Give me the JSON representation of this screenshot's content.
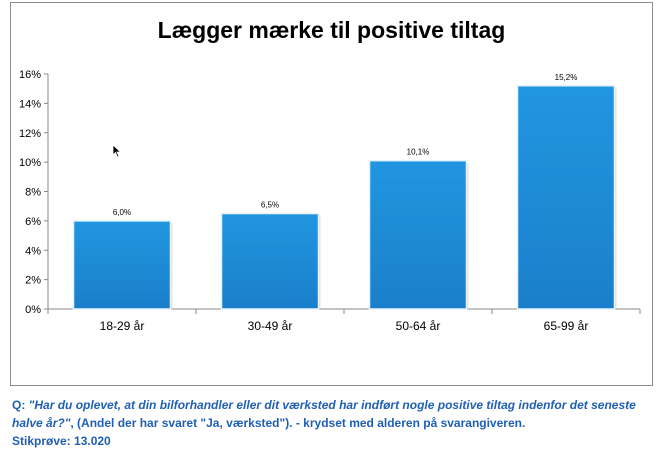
{
  "chart_data": {
    "type": "bar",
    "title": "Lægger mærke til positive tiltag",
    "categories": [
      "18-29 år",
      "30-49 år",
      "50-64 år",
      "65-99 år"
    ],
    "values": [
      6.0,
      6.5,
      10.1,
      15.2
    ],
    "data_labels": [
      "6,0%",
      "6,5%",
      "10,1%",
      "15,2%"
    ],
    "yticks": [
      "0%",
      "2%",
      "4%",
      "6%",
      "8%",
      "10%",
      "12%",
      "14%",
      "16%"
    ],
    "ylim": [
      0,
      16
    ],
    "ytick_step": 2,
    "xlabel": "",
    "ylabel": "",
    "grid": false,
    "legend": "none",
    "bar_color": "#1f8ad6",
    "bar_edge_color": "#1670b5"
  },
  "caption": {
    "q_prefix": "Q: ",
    "question": "\"Har du oplevet, at din bilforhandler eller dit værksted har indført nogle positive tiltag indenfor det seneste halve år?\"",
    "answer_note": ", (Andel der har svaret \"Ja, værksted\"). - krydset med alderen på svarangiveren.",
    "sample": "Stikprøve: 13.020"
  }
}
